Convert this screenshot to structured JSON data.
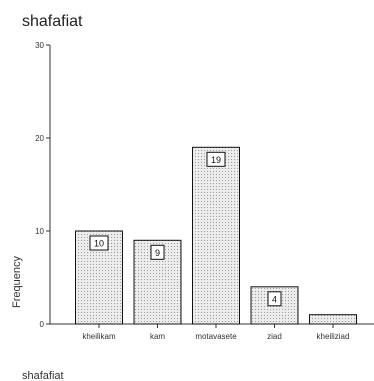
{
  "chart_data": {
    "type": "bar",
    "title": "shafafiat",
    "xlabel": "shafafiat",
    "ylabel": "Frequency",
    "categories": [
      "kheilikam",
      "kam",
      "motavasete",
      "ziad",
      "kheiliziad"
    ],
    "values": [
      10,
      9,
      19,
      4,
      1
    ],
    "data_labels": [
      "10",
      "9",
      "19",
      "4",
      ""
    ],
    "ylim": [
      0,
      30
    ],
    "yticks": [
      0,
      10,
      20,
      30
    ],
    "grid": false,
    "legend": "none",
    "colors": {
      "bar_fill": "#dcdcdc",
      "bar_stroke": "#111111",
      "axis": "#333333"
    }
  }
}
